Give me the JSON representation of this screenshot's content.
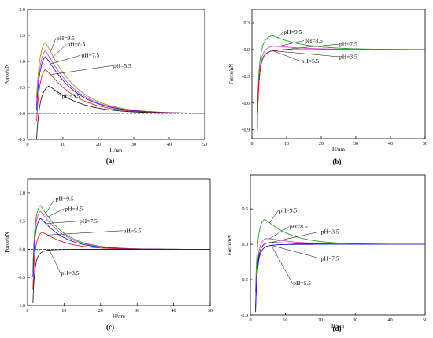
{
  "chart_data": [
    {
      "type": "line",
      "panel": "(a)",
      "xlabel": "H/nm",
      "ylabel": "Force/nN",
      "xlim": [
        0,
        50
      ],
      "ylim": [
        -0.5,
        2.0
      ],
      "xticks": [
        0,
        10,
        20,
        30,
        40,
        50
      ],
      "yticks": [
        -0.5,
        0.0,
        0.5,
        1.0,
        1.5,
        2.0
      ],
      "ytick_labels": [
        "-0.5",
        "0.0",
        "0.5",
        "1.0",
        "1.5",
        "2.0"
      ],
      "zero_line": "dashed",
      "legend": "inline labels",
      "series": [
        {
          "name": "pH=9.5",
          "color": "#9a9a1a",
          "x0": 2.6,
          "peak_x": 5,
          "peak_y": 1.5,
          "decay": 8,
          "label_at": [
            8,
            1.45
          ]
        },
        {
          "name": "pH=8.5",
          "color": "#e040e0",
          "x0": 2.6,
          "peak_x": 5,
          "peak_y": 1.33,
          "decay": 8,
          "label_at": [
            11,
            1.33
          ]
        },
        {
          "name": "pH=7.5",
          "color": "#2020e0",
          "x0": 2.6,
          "peak_x": 5,
          "peak_y": 1.22,
          "decay": 8,
          "label_at": [
            15,
            1.12
          ]
        },
        {
          "name": "pH=5.5",
          "color": "#e02020",
          "x0": 2.6,
          "peak_x": 5,
          "peak_y": 0.97,
          "decay": 8,
          "label_at": [
            24,
            0.92
          ]
        },
        {
          "name": "pH=3.5",
          "color": "#222222",
          "x0": 2.6,
          "peak_x": 6,
          "peak_y": 0.6,
          "decay": 8,
          "label_at": [
            9.5,
            0.33
          ]
        }
      ]
    },
    {
      "type": "line",
      "panel": "(b)",
      "xlabel": "H/nm",
      "ylabel": "Force/nN",
      "xlim": [
        0,
        50
      ],
      "ylim": [
        -1.0,
        0.45
      ],
      "xticks": [
        0,
        10,
        20,
        30,
        40,
        50
      ],
      "yticks": [
        -0.9,
        -0.6,
        -0.3,
        0.0,
        0.3
      ],
      "ytick_labels": [
        "-0.9",
        "-0.6",
        "-0.3",
        "0.0",
        "0.3"
      ],
      "zero_line": "none",
      "legend": "inline labels",
      "series": [
        {
          "name": "pH=9.5",
          "color": "#20a020",
          "x0": 1.5,
          "peak_x": 6,
          "peak_y": 0.17,
          "decay": 8,
          "label_at": [
            9,
            0.2
          ]
        },
        {
          "name": "pH=8.5",
          "color": "#e040e0",
          "x0": 1.5,
          "peak_x": 6,
          "peak_y": 0.05,
          "decay": 8,
          "label_at": [
            15,
            0.1
          ]
        },
        {
          "name": "pH=7.5",
          "color": "#2020e0",
          "x0": 1.5,
          "peak_x": 6,
          "peak_y": 0.0,
          "decay": 8,
          "label_at": [
            25,
            0.06
          ]
        },
        {
          "name": "pH=3.5",
          "color": "#222222",
          "x0": 1.5,
          "peak_x": 0,
          "peak_y": 0.0,
          "decay": 8,
          "label_at": [
            25,
            -0.08
          ]
        },
        {
          "name": "pH=5.5",
          "color": "#e02020",
          "x0": 1.5,
          "peak_x": 0,
          "peak_y": 0.0,
          "decay": 8,
          "label_at": [
            14,
            -0.13
          ]
        }
      ]
    },
    {
      "type": "line",
      "panel": "(c)",
      "xlabel": "H/nm",
      "ylabel": "Force/nN",
      "xlim": [
        0,
        50
      ],
      "ylim": [
        -1.0,
        1.25
      ],
      "xticks": [
        0,
        10,
        20,
        30,
        40,
        50
      ],
      "yticks": [
        -1.0,
        -0.5,
        0.0,
        0.5,
        1.0
      ],
      "ytick_labels": [
        "-1.0",
        "-0.5",
        "0.0",
        "0.5",
        "1.0"
      ],
      "zero_line": "dashed",
      "legend": "inline labels",
      "series": [
        {
          "name": "pH=9.5",
          "color": "#20a020",
          "x0": 1.5,
          "peak_x": 3.5,
          "peak_y": 0.85,
          "decay": 6,
          "label_at": [
            7.5,
            0.9
          ]
        },
        {
          "name": "pH=8.5",
          "color": "#e040e0",
          "x0": 1.5,
          "peak_x": 3.5,
          "peak_y": 0.75,
          "decay": 6,
          "label_at": [
            10,
            0.72
          ]
        },
        {
          "name": "pH=7.5",
          "color": "#2020e0",
          "x0": 1.5,
          "peak_x": 3.5,
          "peak_y": 0.62,
          "decay": 6,
          "label_at": [
            14,
            0.5
          ]
        },
        {
          "name": "pH=5.5",
          "color": "#e02020",
          "x0": 1.5,
          "peak_x": 4,
          "peak_y": 0.35,
          "decay": 6,
          "label_at": [
            26,
            0.33
          ]
        },
        {
          "name": "pH=3.5",
          "color": "#222222",
          "x0": 1.5,
          "peak_x": 0,
          "peak_y": 0.0,
          "decay": 6,
          "label_at": [
            9,
            -0.42
          ]
        }
      ]
    },
    {
      "type": "line",
      "panel": "(d)",
      "xlabel": "H/nm",
      "ylabel": "Force/nN",
      "xlim": [
        0,
        50
      ],
      "ylim": [
        -1.0,
        0.98
      ],
      "xticks": [
        0,
        10,
        20,
        30,
        40,
        50
      ],
      "yticks": [
        -1.0,
        -0.5,
        0.0,
        0.5
      ],
      "ytick_labels": [
        "-1.0",
        "-0.5",
        "0.0",
        "0.5"
      ],
      "zero_line": "none",
      "legend": "inline labels",
      "series": [
        {
          "name": "pH=9.5",
          "color": "#20a020",
          "x0": 1.5,
          "peak_x": 4,
          "peak_y": 0.4,
          "decay": 7,
          "label_at": [
            8,
            0.48
          ]
        },
        {
          "name": "pH=8.5",
          "color": "#e040e0",
          "x0": 1.5,
          "peak_x": 4,
          "peak_y": 0.12,
          "decay": 7,
          "label_at": [
            11,
            0.25
          ]
        },
        {
          "name": "pH=3.5",
          "color": "#222222",
          "x0": 1.5,
          "peak_x": 4,
          "peak_y": 0.05,
          "decay": 7,
          "label_at": [
            20,
            0.18
          ]
        },
        {
          "name": "pH=7.5",
          "color": "#e02020",
          "x0": 1.5,
          "peak_x": 0,
          "peak_y": 0.0,
          "decay": 7,
          "label_at": [
            20,
            -0.2
          ]
        },
        {
          "name": "pH=5.5",
          "color": "#2020e0",
          "x0": 1.5,
          "peak_x": 0,
          "peak_y": 0.0,
          "decay": 7,
          "label_at": [
            12,
            -0.55
          ]
        }
      ]
    }
  ]
}
